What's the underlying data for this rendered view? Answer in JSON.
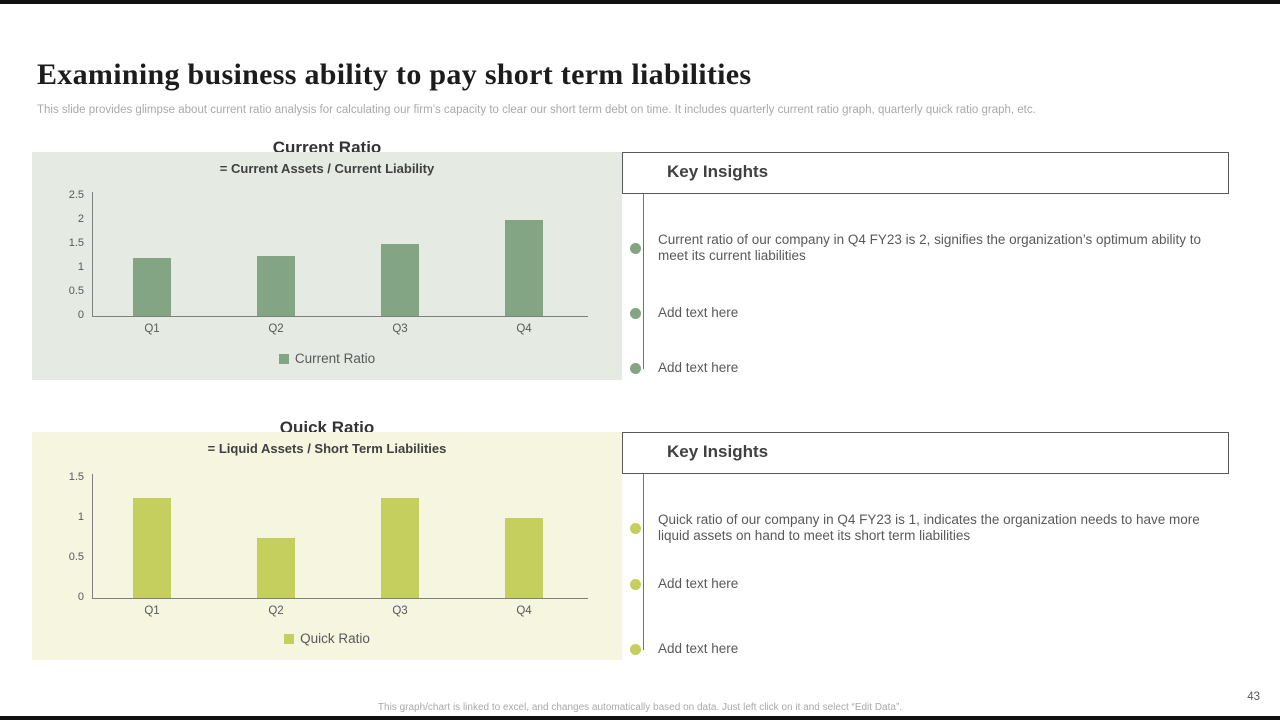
{
  "header": {
    "title": "Examining business ability to pay short term liabilities",
    "subtitle": "This slide provides glimpse about current ratio analysis for calculating our firm’s capacity to clear our short term debt on time. It includes quarterly current ratio graph, quarterly quick ratio graph, etc."
  },
  "chart_data": [
    {
      "type": "bar",
      "heading": "Current Ratio",
      "title": "= Current Assets / Current Liability",
      "categories": [
        "Q1",
        "Q2",
        "Q3",
        "Q4"
      ],
      "values": [
        1.2,
        1.25,
        1.5,
        2
      ],
      "legend": "Current Ratio",
      "yticks": [
        0,
        0.5,
        1,
        1.5,
        2,
        2.5
      ],
      "ylim": [
        0,
        2.5
      ],
      "grid": "off",
      "legend_position": "bottom-center",
      "bar_color": "#84a583",
      "panel_bg": "#e5ebe2"
    },
    {
      "type": "bar",
      "heading": "Quick Ratio",
      "title": "= Liquid Assets / Short Term Liabilities",
      "categories": [
        "Q1",
        "Q2",
        "Q3",
        "Q4"
      ],
      "values": [
        1.25,
        0.75,
        1.25,
        1
      ],
      "legend": "Quick Ratio",
      "yticks": [
        0,
        0.5,
        1,
        1.5
      ],
      "ylim": [
        0,
        1.5
      ],
      "grid": "off",
      "legend_position": "bottom-center",
      "bar_color": "#c4cf5e",
      "panel_bg": "#f5f5e0"
    }
  ],
  "insights": [
    {
      "title": "Key Insights",
      "bullet_color": "#84a583",
      "items": [
        "Current ratio of our company in Q4 FY23 is 2, signifies the organization’s optimum ability to meet its current liabilities",
        "Add text here",
        "Add text here"
      ]
    },
    {
      "title": "Key Insights",
      "bullet_color": "#c4cf5e",
      "items": [
        "Quick ratio of our company in Q4 FY23 is 1, indicates the organization needs to have more liquid assets on hand to meet its short term liabilities",
        "Add text here",
        "Add text here"
      ]
    }
  ],
  "footer": {
    "note": "This graph/chart is linked to excel, and changes automatically based on data. Just left click on it and select “Edit Data”.",
    "page_number": "43"
  }
}
